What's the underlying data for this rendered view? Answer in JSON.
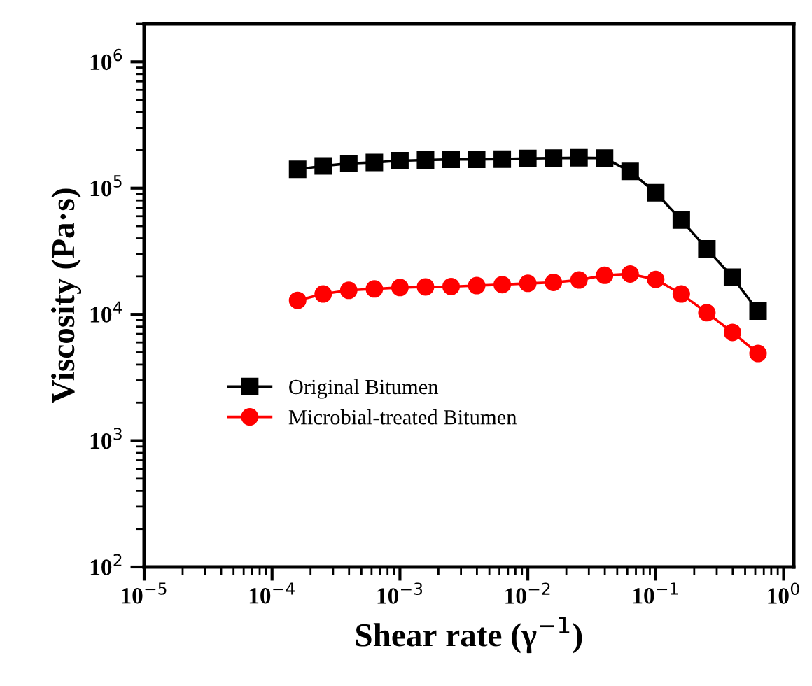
{
  "chart_data": {
    "type": "line",
    "xlabel": "Shear rate (γ$^{−1}$)",
    "ylabel": "Viscosity (Pa·s)",
    "log": "xy",
    "legend": "left",
    "line_style": "solid",
    "grid": false,
    "x": [
      0.0001585,
      0.0002512,
      0.0003981,
      0.000631,
      0.001,
      0.001585,
      0.002512,
      0.003981,
      0.00631,
      0.01,
      0.01585,
      0.02512,
      0.03981,
      0.0631,
      0.1,
      0.1585,
      0.2512,
      0.3981,
      0.631
    ],
    "xlim": [
      1e-05,
      1.2
    ],
    "ylim": [
      100,
      2000000
    ],
    "xticks": [
      {
        "value": 1e-05,
        "label": "10$^{−5}$"
      },
      {
        "value": 0.0001,
        "label": "10$^{−4}$"
      },
      {
        "value": 0.001,
        "label": "10$^{−3}$"
      },
      {
        "value": 0.01,
        "label": "10$^{−2}$"
      },
      {
        "value": 0.1,
        "label": "10$^{−1}$"
      },
      {
        "value": 1,
        "label": "10$^{0}$"
      }
    ],
    "yticks": [
      {
        "value": 100,
        "label": "10$^{2}$"
      },
      {
        "value": 1000,
        "label": "10$^{3}$"
      },
      {
        "value": 10000,
        "label": "10$^{4}$"
      },
      {
        "value": 100000,
        "label": "10$^{5}$"
      },
      {
        "value": 1000000,
        "label": "10$^{6}$"
      }
    ],
    "series": [
      {
        "name": "Original Bitumen",
        "color": "#000000",
        "marker": "square",
        "values": [
          141000,
          150000,
          157000,
          160000,
          165000,
          167000,
          169000,
          169000,
          170000,
          172000,
          173000,
          174000,
          173000,
          136000,
          92000,
          56000,
          33000,
          19700,
          10600
        ]
      },
      {
        "name": "Microbial-treated Bitumen",
        "color": "#ff0000",
        "marker": "circle",
        "values": [
          12900,
          14500,
          15500,
          15900,
          16300,
          16500,
          16600,
          16900,
          17200,
          17600,
          17900,
          18700,
          20400,
          20900,
          18900,
          14500,
          10300,
          7200,
          4900
        ]
      }
    ]
  }
}
